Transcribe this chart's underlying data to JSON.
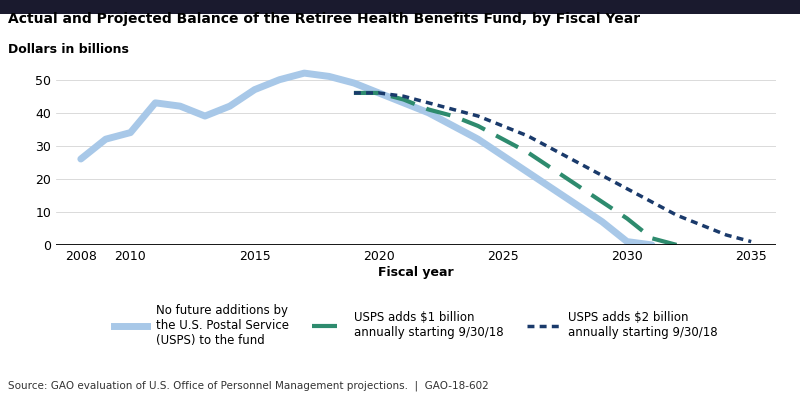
{
  "title": "Actual and Projected Balance of the Retiree Health Benefits Fund, by Fiscal Year",
  "subtitle": "Dollars in billions",
  "xlabel": "Fiscal year",
  "source": "Source: GAO evaluation of U.S. Office of Personnel Management projections.  |  GAO-18-602",
  "line1_label": "No future additions by\nthe U.S. Postal Service\n(USPS) to the fund",
  "line2_label": "USPS adds $1 billion\nannually starting 9/30/18",
  "line3_label": "USPS adds $2 billion\nannually starting 9/30/18",
  "line1_color": "#a8c8e8",
  "line2_color": "#2e8b6e",
  "line3_color": "#1a3a6b",
  "line1_x": [
    2008,
    2009,
    2010,
    2011,
    2012,
    2013,
    2014,
    2015,
    2016,
    2017,
    2018,
    2019,
    2020,
    2021,
    2022,
    2023,
    2024,
    2025,
    2026,
    2027,
    2028,
    2029,
    2030,
    2031
  ],
  "line1_y": [
    26,
    32,
    34,
    43,
    42,
    39,
    42,
    47,
    50,
    52,
    51,
    49,
    46,
    43,
    40,
    36,
    32,
    27,
    22,
    17,
    12,
    7,
    1,
    0
  ],
  "line2_x": [
    2019,
    2020,
    2021,
    2022,
    2023,
    2024,
    2025,
    2026,
    2027,
    2028,
    2029,
    2030,
    2031,
    2032
  ],
  "line2_y": [
    46,
    46,
    44,
    41,
    39,
    36,
    32,
    28,
    23,
    18,
    13,
    8,
    2,
    0
  ],
  "line3_x": [
    2019,
    2020,
    2021,
    2022,
    2023,
    2024,
    2025,
    2026,
    2027,
    2028,
    2029,
    2030,
    2031,
    2032,
    2033,
    2034,
    2035
  ],
  "line3_y": [
    46,
    46,
    45,
    43,
    41,
    39,
    36,
    33,
    29,
    25,
    21,
    17,
    13,
    9,
    6,
    3,
    1
  ],
  "ylim": [
    0,
    55
  ],
  "xlim": [
    2007,
    2036
  ],
  "yticks": [
    0,
    10,
    20,
    30,
    40,
    50
  ],
  "xticks": [
    2008,
    2010,
    2015,
    2020,
    2025,
    2030,
    2035
  ],
  "background_color": "#ffffff",
  "top_bar_color": "#1a1a2e"
}
